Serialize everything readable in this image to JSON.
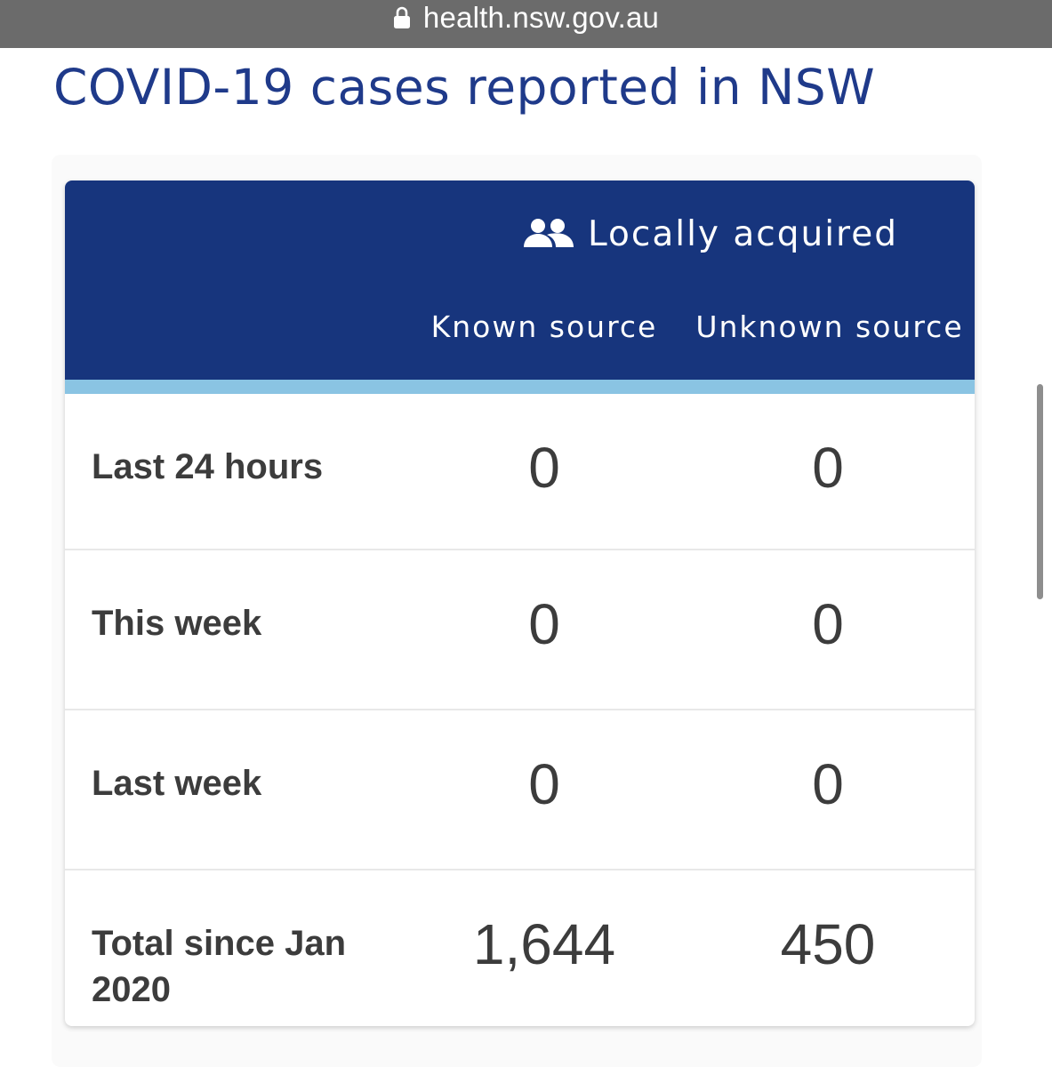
{
  "browser": {
    "url": "health.nsw.gov.au"
  },
  "page": {
    "title": "COVID-19 cases reported in NSW"
  },
  "table": {
    "group_heading": "Locally acquired",
    "columns": [
      "Known source",
      "Unknown source"
    ],
    "rows": [
      {
        "label": "Last 24 hours",
        "known": "0",
        "unknown": "0"
      },
      {
        "label": "This week",
        "known": "0",
        "unknown": "0"
      },
      {
        "label": "Last week",
        "known": "0",
        "unknown": "0"
      },
      {
        "label": "Total since Jan 2020",
        "known": "1,644",
        "unknown": "450"
      }
    ]
  },
  "colors": {
    "header_bg": "#17357d",
    "header_accent": "#8ac4e3",
    "title_color": "#1f3a8a",
    "url_bar_bg": "#6b6b6b"
  },
  "icons": {
    "lock": "lock-icon",
    "group": "people-icon"
  }
}
